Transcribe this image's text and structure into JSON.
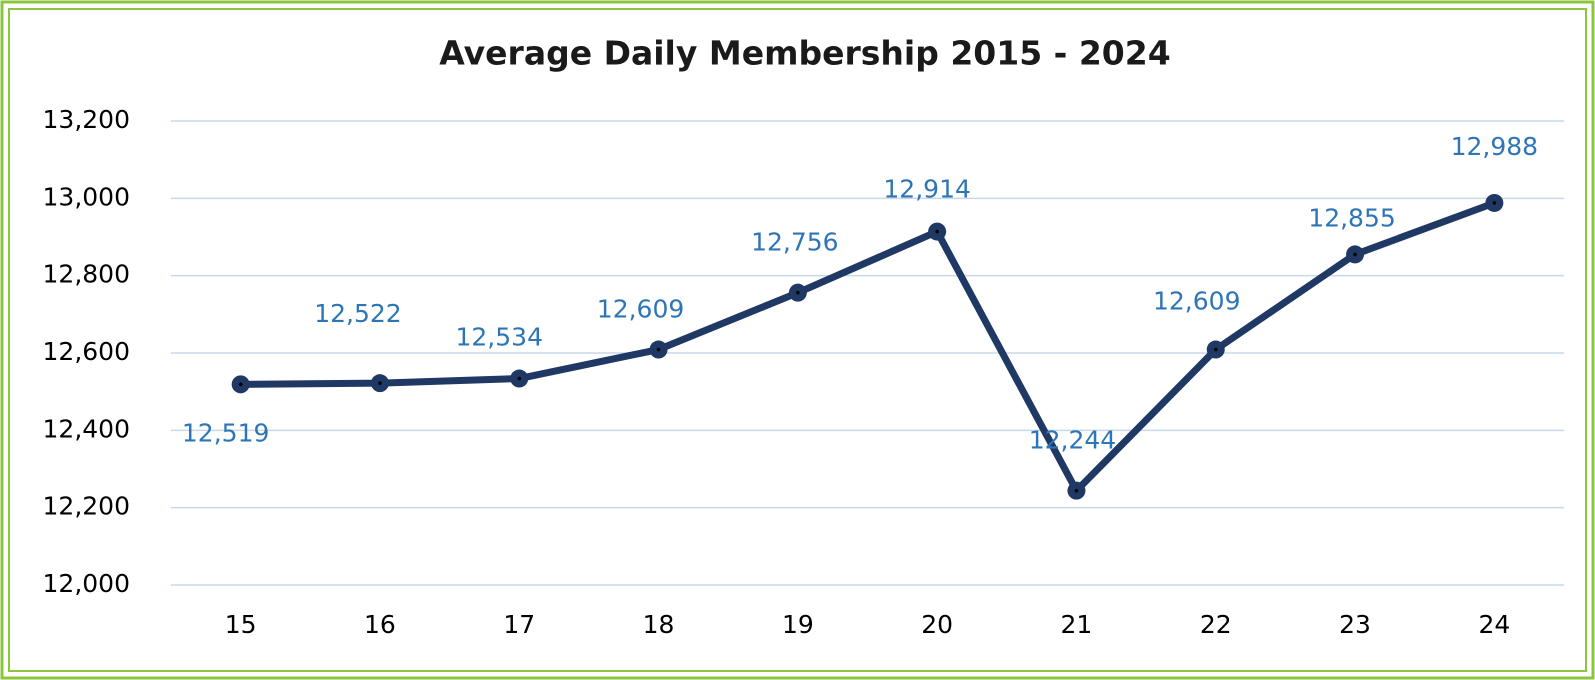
{
  "chart_data": {
    "type": "line",
    "title": "Average Daily Membership 2015 - 2024",
    "categories": [
      "15",
      "16",
      "17",
      "18",
      "19",
      "20",
      "21",
      "22",
      "23",
      "24"
    ],
    "series": [
      {
        "name": "Average Daily Membership",
        "color": "#1f3864",
        "values": [
          12519,
          12522,
          12534,
          12609,
          12756,
          12914,
          12244,
          12609,
          12855,
          12988
        ],
        "value_labels": [
          "12,519",
          "12,522",
          "12,534",
          "12,609",
          "12,756",
          "12,914",
          "12,244",
          "12,609",
          "12,855",
          "12,988"
        ]
      }
    ],
    "ylim": [
      12000,
      13200
    ],
    "yticks": [
      {
        "value": 12000,
        "label": "12,000"
      },
      {
        "value": 12200,
        "label": "12,200"
      },
      {
        "value": 12400,
        "label": "12,400"
      },
      {
        "value": 12600,
        "label": "12,600"
      },
      {
        "value": 12800,
        "label": "12,800"
      },
      {
        "value": 13000,
        "label": "13,000"
      },
      {
        "value": 13200,
        "label": "13,200"
      }
    ],
    "grid": true
  }
}
